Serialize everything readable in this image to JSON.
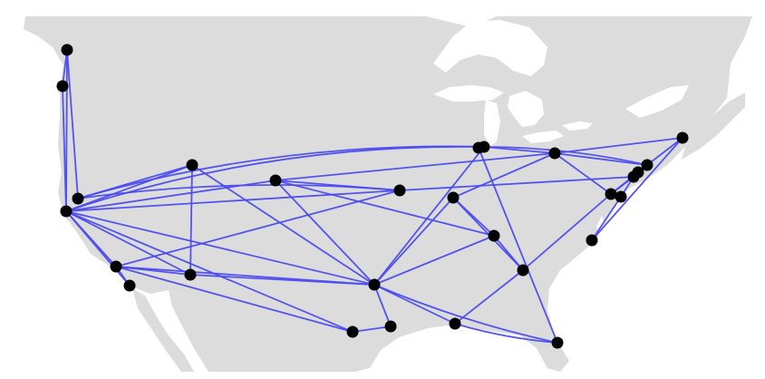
{
  "map": {
    "colors": {
      "background": "#ffffff",
      "land": "#dcdcdc",
      "water": "#ffffff",
      "route": "#4b4bf0",
      "node": "#000000"
    },
    "nodes": [
      {
        "id": "n01"
      },
      {
        "id": "n02"
      },
      {
        "id": "n03"
      },
      {
        "id": "n04"
      },
      {
        "id": "n05"
      },
      {
        "id": "n06"
      },
      {
        "id": "n07"
      },
      {
        "id": "n08"
      },
      {
        "id": "n09"
      },
      {
        "id": "n10"
      },
      {
        "id": "n11"
      },
      {
        "id": "n12"
      },
      {
        "id": "n13"
      },
      {
        "id": "n14"
      },
      {
        "id": "n15"
      },
      {
        "id": "n16"
      },
      {
        "id": "n17"
      },
      {
        "id": "n18"
      },
      {
        "id": "n19"
      },
      {
        "id": "n20"
      },
      {
        "id": "n21"
      },
      {
        "id": "n22"
      },
      {
        "id": "n23"
      },
      {
        "id": "n24"
      },
      {
        "id": "n25"
      },
      {
        "id": "n26"
      },
      {
        "id": "n27"
      },
      {
        "id": "n28"
      }
    ],
    "links": [
      [
        "n01",
        "n02"
      ],
      [
        "n01",
        "n03"
      ],
      [
        "n01",
        "n04"
      ],
      [
        "n02",
        "n03"
      ],
      [
        "n04",
        "n15"
      ],
      [
        "n04",
        "n10"
      ],
      [
        "n04",
        "n08"
      ],
      [
        "n03",
        "n05"
      ],
      [
        "n03",
        "n06"
      ],
      [
        "n03",
        "n07"
      ],
      [
        "n03",
        "n08"
      ],
      [
        "n03",
        "n09"
      ],
      [
        "n03",
        "n10"
      ],
      [
        "n03",
        "n11"
      ],
      [
        "n03",
        "n12"
      ],
      [
        "n03",
        "n15"
      ],
      [
        "n05",
        "n06"
      ],
      [
        "n05",
        "n07"
      ],
      [
        "n05",
        "n10"
      ],
      [
        "n05",
        "n11"
      ],
      [
        "n05",
        "n12"
      ],
      [
        "n07",
        "n08"
      ],
      [
        "n07",
        "n11"
      ],
      [
        "n08",
        "n11"
      ],
      [
        "n09",
        "n10"
      ],
      [
        "n09",
        "n11"
      ],
      [
        "n09",
        "n16"
      ],
      [
        "n09",
        "n18"
      ],
      [
        "n10",
        "n21"
      ],
      [
        "n11",
        "n13"
      ],
      [
        "n11",
        "n14"
      ],
      [
        "n11",
        "n15"
      ],
      [
        "n11",
        "n16"
      ],
      [
        "n11",
        "n17"
      ],
      [
        "n11",
        "n26"
      ],
      [
        "n12",
        "n13"
      ],
      [
        "n14",
        "n16"
      ],
      [
        "n14",
        "n18"
      ],
      [
        "n14",
        "n19"
      ],
      [
        "n15",
        "n18"
      ],
      [
        "n15",
        "n22"
      ],
      [
        "n15",
        "n27"
      ],
      [
        "n16",
        "n19"
      ],
      [
        "n17",
        "n19"
      ],
      [
        "n17",
        "n26"
      ],
      [
        "n18",
        "n20"
      ],
      [
        "n18",
        "n22"
      ],
      [
        "n18",
        "n23"
      ],
      [
        "n19",
        "n20"
      ],
      [
        "n20",
        "n21"
      ],
      [
        "n20",
        "n22"
      ],
      [
        "n20",
        "n25"
      ],
      [
        "n21",
        "n25"
      ],
      [
        "n21",
        "n22"
      ],
      [
        "n21",
        "n28"
      ],
      [
        "n22",
        "n23"
      ],
      [
        "n23",
        "n24"
      ],
      [
        "n24",
        "n25"
      ],
      [
        "n26",
        "n27"
      ]
    ]
  }
}
